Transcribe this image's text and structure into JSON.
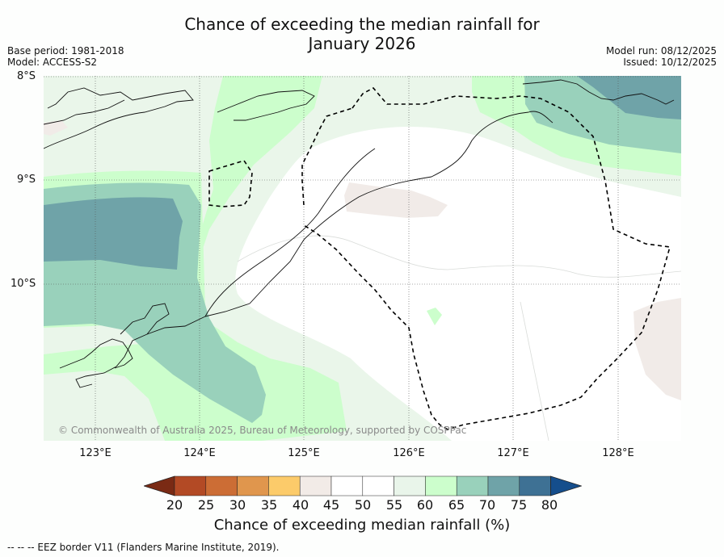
{
  "title": {
    "line1": "Chance of exceeding the median rainfall for",
    "line2": "January 2026"
  },
  "meta": {
    "base_period": "Base period: 1981-2018",
    "model": "Model: ACCESS-S2",
    "model_run": "Model run: 08/12/2025",
    "issued": "Issued: 10/12/2025"
  },
  "axes": {
    "lat_labels": [
      "8°S",
      "9°S",
      "10°S"
    ],
    "lon_labels": [
      "123°E",
      "124°E",
      "125°E",
      "126°E",
      "127°E",
      "128°E"
    ]
  },
  "copyright": "© Commonwealth of Australia 2025, Bureau of Meteorology, supported by COSPPac",
  "colorbar": {
    "label": "Chance of exceeding median rainfall (%)",
    "ticks": [
      "20",
      "25",
      "30",
      "35",
      "40",
      "45",
      "50",
      "55",
      "60",
      "65",
      "70",
      "75",
      "80"
    ],
    "colors": [
      "#7a2a14",
      "#b34a25",
      "#cc6d35",
      "#e0964d",
      "#fccb6a",
      "#f2ebe7",
      "#ffffff",
      "#ffffff",
      "#e9f5ea",
      "#ccfecc",
      "#99d1bb",
      "#6fa3a8",
      "#3e7194",
      "#154e8c"
    ]
  },
  "footnote": "--  --  -- EEZ border V11 (Flanders Marine Institute, 2019)."
}
